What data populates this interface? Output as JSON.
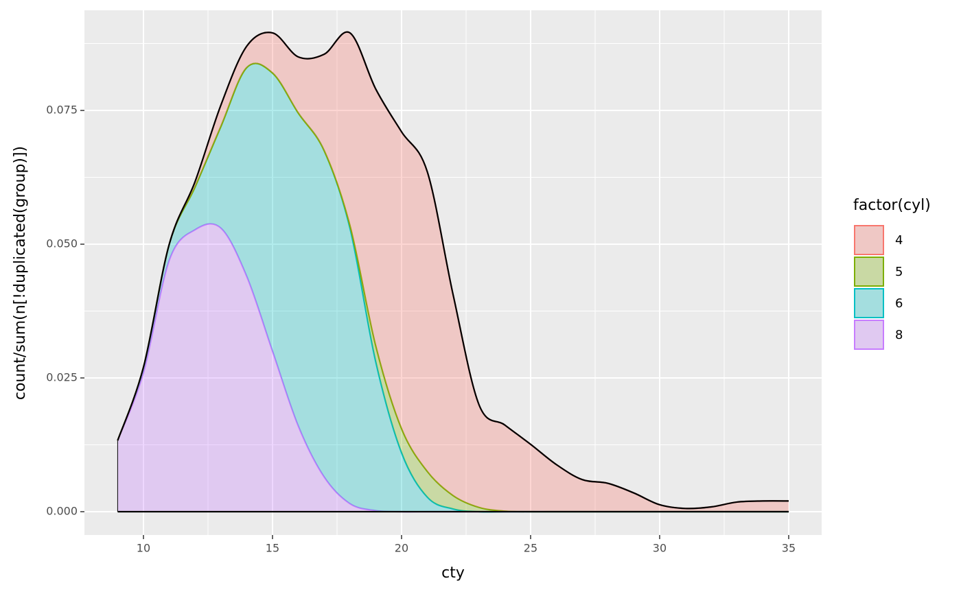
{
  "chart_data": {
    "type": "stacked-density",
    "x_label": "cty",
    "y_label": "count/sum(n[!duplicated(group)])",
    "legend_title": "factor(cyl)",
    "x": [
      9,
      10,
      11,
      12,
      13,
      14,
      15,
      16,
      17,
      18,
      19,
      20,
      21,
      22,
      23,
      24,
      25,
      26,
      27,
      28,
      29,
      30,
      31,
      32,
      33,
      34,
      35
    ],
    "series": [
      {
        "name": "4",
        "color": "#F8766D",
        "values": [
          0,
          0,
          0,
          0.001,
          0.004,
          0.004,
          0.0075,
          0.0105,
          0.018,
          0.036,
          0.048,
          0.0555,
          0.056,
          0.0375,
          0.0192,
          0.0161,
          0.0126,
          0.0088,
          0.006,
          0.0053,
          0.0035,
          0.0013,
          0.0006,
          0.0009,
          0.0018,
          0.002,
          0.002
        ]
      },
      {
        "name": "5",
        "color": "#7CAE00",
        "values": [
          0,
          0,
          0,
          0,
          0,
          0,
          0,
          0,
          0,
          0.0005,
          0.003,
          0.0045,
          0.0048,
          0.0025,
          0.0008,
          0.0001,
          0,
          0,
          0,
          0,
          0,
          0,
          0,
          0,
          0,
          0,
          0
        ]
      },
      {
        "name": "6",
        "color": "#00BFC4",
        "values": [
          0,
          0.001,
          0.003,
          0.008,
          0.019,
          0.039,
          0.052,
          0.0585,
          0.061,
          0.0515,
          0.0278,
          0.011,
          0.0027,
          0.0005,
          0,
          0,
          0,
          0,
          0,
          0,
          0,
          0,
          0,
          0,
          0,
          0,
          0
        ]
      },
      {
        "name": "8",
        "color": "#C77CFF",
        "values": [
          0.0133,
          0.026,
          0.047,
          0.0527,
          0.053,
          0.044,
          0.03,
          0.016,
          0.0065,
          0.0015,
          0.0002,
          0,
          0,
          0,
          0,
          0,
          0,
          0,
          0,
          0,
          0,
          0,
          0,
          0,
          0,
          0,
          0
        ]
      }
    ],
    "xlim": [
      7.713,
      36.277
    ],
    "xticks": [
      10,
      15,
      20,
      25,
      30,
      35
    ],
    "ylim": [
      -0.00436,
      0.09372
    ],
    "yticks": [
      {
        "value": 0,
        "label": "0.000"
      },
      {
        "value": 0.025,
        "label": "0.025"
      },
      {
        "value": 0.05,
        "label": "0.050"
      },
      {
        "value": 0.075,
        "label": "0.075"
      }
    ],
    "grid": true
  }
}
